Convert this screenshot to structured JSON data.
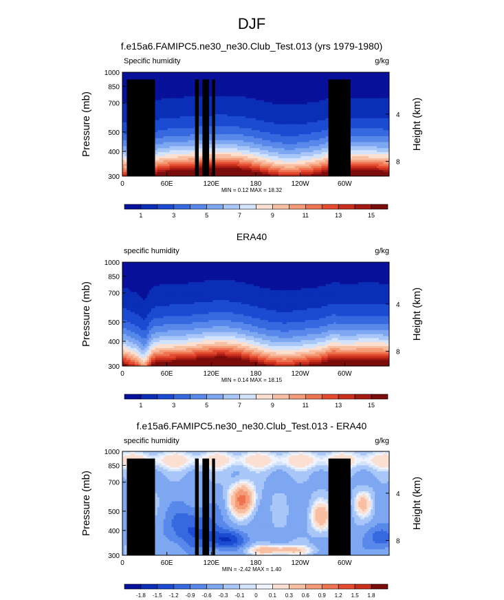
{
  "figure_title": "DJF",
  "colors": {
    "axis": "#000000",
    "land_mask": "#000000",
    "page_background": "#ffffff"
  },
  "chart_data": [
    {
      "type": "heatmap",
      "title": "f.e15a6.FAMIPC5.ne30_ne30.Club_Test.013 (yrs 1979-1980)",
      "left_label": "Specific humidity",
      "right_label": "g/kg",
      "ylabel": "Pressure (mb)",
      "ylabel_right": "Height (km)",
      "x_ticks": [
        "0",
        "60E",
        "120E",
        "180",
        "120W",
        "60W"
      ],
      "y_ticks": [
        "300",
        "400",
        "500",
        "700",
        "850",
        "1000"
      ],
      "y_right_ticks": [
        "8",
        "4"
      ],
      "stats": "MIN =   0.12   MAX =  18.32",
      "min": 0.12,
      "max": 18.32,
      "colorbar_labels": [
        "1",
        "3",
        "5",
        "7",
        "9",
        "11",
        "13",
        "15"
      ],
      "colorbar_colors": [
        "#08119a",
        "#0a2eb6",
        "#1a4bd1",
        "#3668e0",
        "#5888ea",
        "#7ea7f2",
        "#a8c6f7",
        "#d2e3fb",
        "#fbe0d2",
        "#f8bfa2",
        "#f49b78",
        "#ee7350",
        "#e34a2f",
        "#c8301d",
        "#a31a14",
        "#7a0c0c"
      ],
      "land_mask": true
    },
    {
      "type": "heatmap",
      "title": "ERA40",
      "left_label": "specific humidity",
      "right_label": "g/kg",
      "ylabel": "Pressure (mb)",
      "ylabel_right": "Height (km)",
      "x_ticks": [
        "0",
        "60E",
        "120E",
        "180",
        "120W",
        "60W"
      ],
      "y_ticks": [
        "300",
        "400",
        "500",
        "700",
        "850",
        "1000"
      ],
      "y_right_ticks": [
        "8",
        "4"
      ],
      "stats": "MIN =   0.14   MAX =  18.15",
      "min": 0.14,
      "max": 18.15,
      "colorbar_labels": [
        "1",
        "3",
        "5",
        "7",
        "9",
        "11",
        "13",
        "15"
      ],
      "colorbar_colors": [
        "#08119a",
        "#0a2eb6",
        "#1a4bd1",
        "#3668e0",
        "#5888ea",
        "#7ea7f2",
        "#a8c6f7",
        "#d2e3fb",
        "#fbe0d2",
        "#f8bfa2",
        "#f49b78",
        "#ee7350",
        "#e34a2f",
        "#c8301d",
        "#a31a14",
        "#7a0c0c"
      ],
      "land_mask": false
    },
    {
      "type": "heatmap",
      "title": "f.e15a6.FAMIPC5.ne30_ne30.Club_Test.013 - ERA40",
      "left_label": "specific humidity",
      "right_label": "g/kg",
      "ylabel": "Pressure (mb)",
      "ylabel_right": "Height (km)",
      "x_ticks": [
        "0",
        "60E",
        "120E",
        "180",
        "120W",
        "60W"
      ],
      "y_ticks": [
        "300",
        "400",
        "500",
        "700",
        "850",
        "1000"
      ],
      "y_right_ticks": [
        "8",
        "4"
      ],
      "stats": "MIN =  -2.42   MAX =    1.40",
      "min": -2.42,
      "max": 1.4,
      "colorbar_labels": [
        "-1.8",
        "-1.5",
        "-1.2",
        "-0.9",
        "-0.6",
        "-0.3",
        "-0.1",
        "0",
        "0.1",
        "0.3",
        "0.6",
        "0.9",
        "1.2",
        "1.5",
        "1.8"
      ],
      "colorbar_colors": [
        "#08119a",
        "#0a2eb6",
        "#1a4bd1",
        "#3668e0",
        "#5888ea",
        "#7ea7f2",
        "#a8c6f7",
        "#d2e3fb",
        "#eef3fd",
        "#fbe0d2",
        "#f8bfa2",
        "#f49b78",
        "#ee7350",
        "#e34a2f",
        "#c8301d",
        "#7a0c0c"
      ],
      "land_mask": true
    }
  ]
}
